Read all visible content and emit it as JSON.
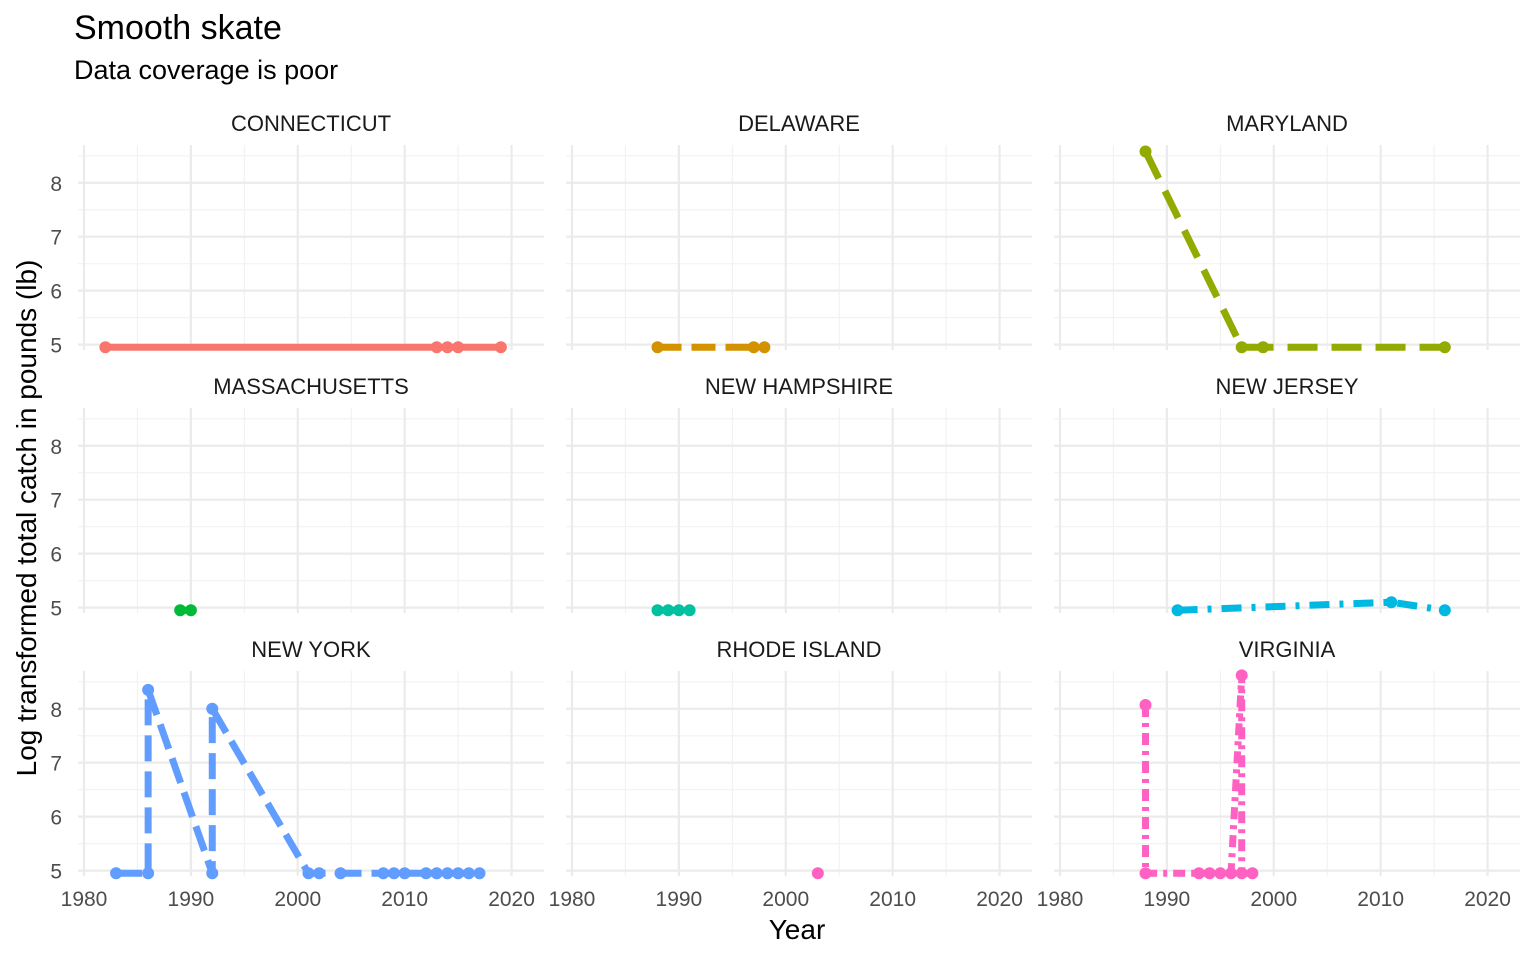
{
  "chart_data": {
    "type": "line",
    "title": "Smooth skate",
    "subtitle": "Data coverage is poor",
    "xlabel": "Year",
    "ylabel": "Log transformed  total catch in pounds (lb)",
    "xlim": [
      1980,
      2020
    ],
    "ylim": [
      4.9,
      8.7
    ],
    "x_ticks": [
      "1980",
      "1990",
      "2000",
      "2010",
      "2020"
    ],
    "y_ticks": [
      "5",
      "6",
      "7",
      "8"
    ],
    "grid": true,
    "legend": "none",
    "facets": [
      {
        "label": "CONNECTICUT",
        "color": "#F8766D",
        "x": [
          1982,
          2013,
          2014,
          2015,
          2019
        ],
        "y": [
          4.95,
          4.95,
          4.95,
          4.95,
          4.95
        ]
      },
      {
        "label": "DELAWARE",
        "color": "#D39200",
        "x": [
          1988,
          1997,
          1998
        ],
        "y": [
          4.95,
          4.95,
          4.95
        ]
      },
      {
        "label": "MARYLAND",
        "color": "#93AA00",
        "x": [
          1988,
          1997,
          1999,
          2016
        ],
        "y": [
          8.58,
          4.95,
          4.95,
          4.95
        ]
      },
      {
        "label": "MASSACHUSETTS",
        "color": "#00BA38",
        "x": [
          1989,
          1990
        ],
        "y": [
          4.95,
          4.95
        ]
      },
      {
        "label": "NEW HAMPSHIRE",
        "color": "#00C19F",
        "x": [
          1988,
          1989,
          1990,
          1991
        ],
        "y": [
          4.95,
          4.95,
          4.95,
          4.95
        ]
      },
      {
        "label": "NEW JERSEY",
        "color": "#00B9E3",
        "x": [
          1991,
          2011,
          2016
        ],
        "y": [
          4.95,
          5.1,
          4.95
        ]
      },
      {
        "label": "NEW YORK",
        "color": "#619CFF",
        "x": [
          1983,
          1986,
          1986,
          1992,
          1992,
          2001,
          2002,
          2004,
          2008,
          2009,
          2010,
          2012,
          2013,
          2014,
          2015,
          2016,
          2017
        ],
        "y": [
          4.95,
          4.95,
          8.35,
          4.95,
          8.0,
          4.95,
          4.95,
          4.95,
          4.95,
          4.95,
          4.95,
          4.95,
          4.95,
          4.95,
          4.95,
          4.95,
          4.95
        ]
      },
      {
        "label": "RHODE ISLAND",
        "color": "#FF61C3",
        "x": [
          2003
        ],
        "y": [
          4.95
        ]
      },
      {
        "label": "VIRGINIA",
        "color": "#FF61C3",
        "x": [
          1988,
          1988,
          1993,
          1994,
          1995,
          1996,
          1997,
          1997,
          1998
        ],
        "y": [
          8.07,
          4.95,
          4.95,
          4.95,
          4.95,
          4.95,
          8.62,
          4.95,
          4.95
        ]
      }
    ]
  }
}
